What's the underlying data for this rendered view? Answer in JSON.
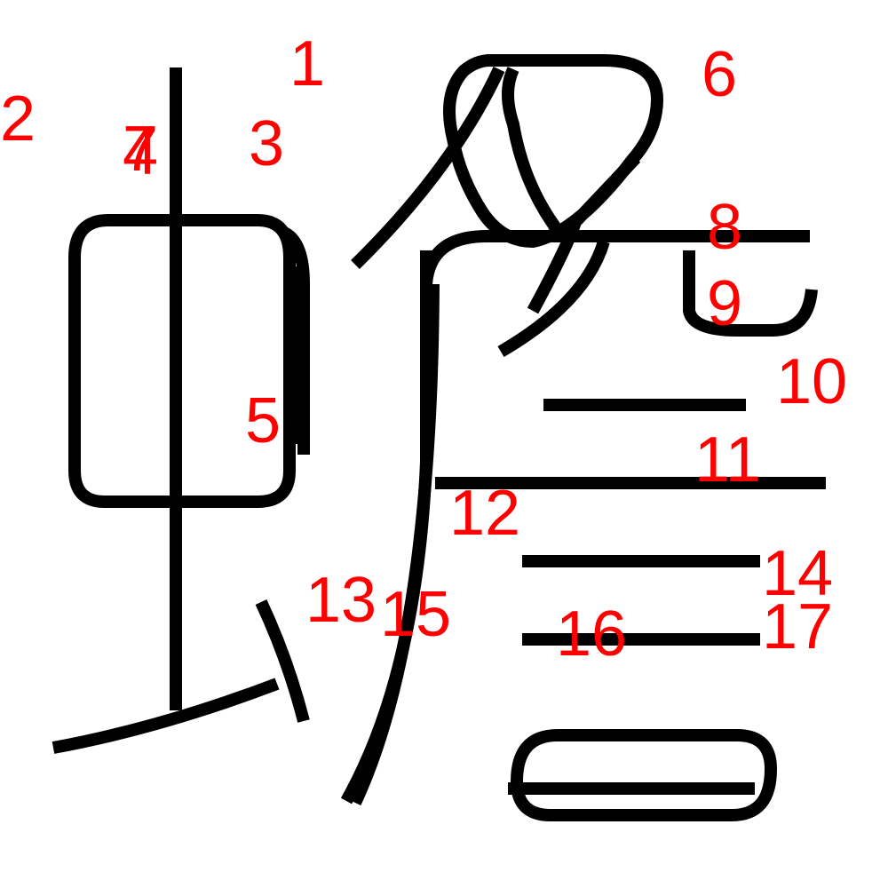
{
  "figure": {
    "type": "stroke-order-diagram",
    "stroke_color": "#000000",
    "label_color": "#ff0000",
    "labels": [
      {
        "id": "1",
        "text": "1"
      },
      {
        "id": "2",
        "text": "2"
      },
      {
        "id": "3",
        "text": "3"
      },
      {
        "id": "4",
        "text": "4"
      },
      {
        "id": "5",
        "text": "5"
      },
      {
        "id": "6",
        "text": "6"
      },
      {
        "id": "7",
        "text": "7"
      },
      {
        "id": "8",
        "text": "8"
      },
      {
        "id": "9",
        "text": "9"
      },
      {
        "id": "10",
        "text": "10"
      },
      {
        "id": "11",
        "text": "11"
      },
      {
        "id": "12",
        "text": "12"
      },
      {
        "id": "13",
        "text": "13"
      },
      {
        "id": "14",
        "text": "14"
      },
      {
        "id": "15",
        "text": "15"
      },
      {
        "id": "16",
        "text": "16"
      },
      {
        "id": "17",
        "text": "17"
      }
    ]
  }
}
